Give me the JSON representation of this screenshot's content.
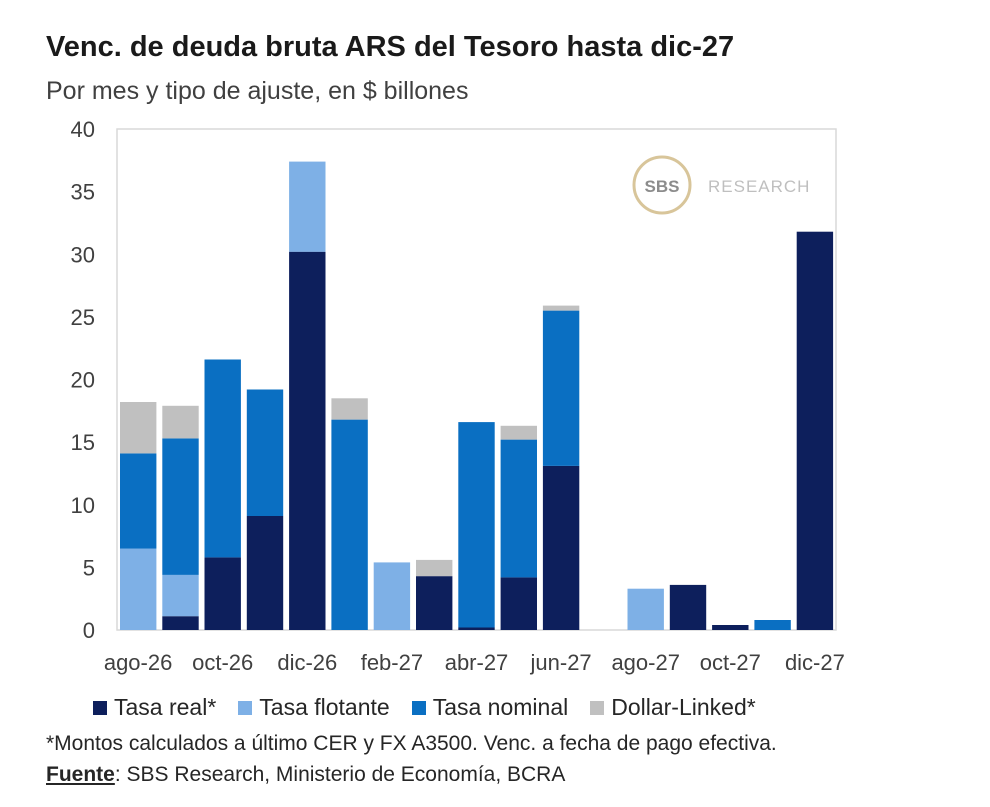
{
  "header": {
    "title": "Venc. de deuda bruta ARS del Tesoro hasta dic-27",
    "subtitle": "Por mes y tipo de ajuste, en $ billones"
  },
  "watermark": {
    "logo_text": "SBS",
    "text": "RESEARCH"
  },
  "chart_data": {
    "type": "bar",
    "stacked": true,
    "categories": [
      "ago-26",
      "sep-26",
      "oct-26",
      "nov-26",
      "dic-26",
      "ene-27",
      "feb-27",
      "mar-27",
      "abr-27",
      "may-27",
      "jun-27",
      "jul-27",
      "ago-27",
      "sep-27",
      "oct-27",
      "nov-27",
      "dic-27"
    ],
    "x_tick_labels": [
      "ago-26",
      "",
      "oct-26",
      "",
      "dic-26",
      "",
      "feb-27",
      "",
      "abr-27",
      "",
      "jun-27",
      "",
      "ago-27",
      "",
      "oct-27",
      "",
      "dic-27"
    ],
    "ylim": [
      0,
      40
    ],
    "yticks": [
      0,
      5,
      10,
      15,
      20,
      25,
      30,
      35,
      40
    ],
    "series": [
      {
        "name": "Tasa real*",
        "color": "#0d1f5c",
        "values": [
          0,
          1.1,
          5.8,
          9.1,
          30.2,
          0,
          0,
          4.3,
          0.2,
          4.2,
          13.1,
          0,
          0,
          3.6,
          0.4,
          0,
          31.8
        ]
      },
      {
        "name": "Tasa flotante",
        "color": "#7eb0e6",
        "values": [
          6.5,
          3.3,
          0,
          0,
          7.2,
          0,
          5.4,
          0,
          0,
          0,
          0,
          0,
          3.3,
          0,
          0,
          0,
          0
        ]
      },
      {
        "name": "Tasa nominal",
        "color": "#0a6fc2",
        "values": [
          7.6,
          10.9,
          15.8,
          10.1,
          0,
          16.8,
          0,
          0,
          16.4,
          11.0,
          12.4,
          0,
          0,
          0,
          0,
          0.8,
          0
        ]
      },
      {
        "name": "Dollar-Linked*",
        "color": "#c0c0c0",
        "values": [
          4.1,
          2.6,
          0,
          0,
          0,
          1.7,
          0,
          1.3,
          0,
          1.1,
          0.4,
          0,
          0,
          0,
          0,
          0,
          0
        ]
      }
    ],
    "ylabel": "",
    "xlabel": ""
  },
  "legend": [
    {
      "label": "Tasa real*",
      "color": "#0d1f5c"
    },
    {
      "label": "Tasa flotante",
      "color": "#7eb0e6"
    },
    {
      "label": "Tasa nominal",
      "color": "#0a6fc2"
    },
    {
      "label": "Dollar-Linked*",
      "color": "#c0c0c0"
    }
  ],
  "footer": {
    "note": "*Montos calculados a último CER y FX A3500. Venc. a fecha de pago efectiva.",
    "source_label": "Fuente",
    "source_text": ": SBS Research, Ministerio de Economía, BCRA"
  }
}
